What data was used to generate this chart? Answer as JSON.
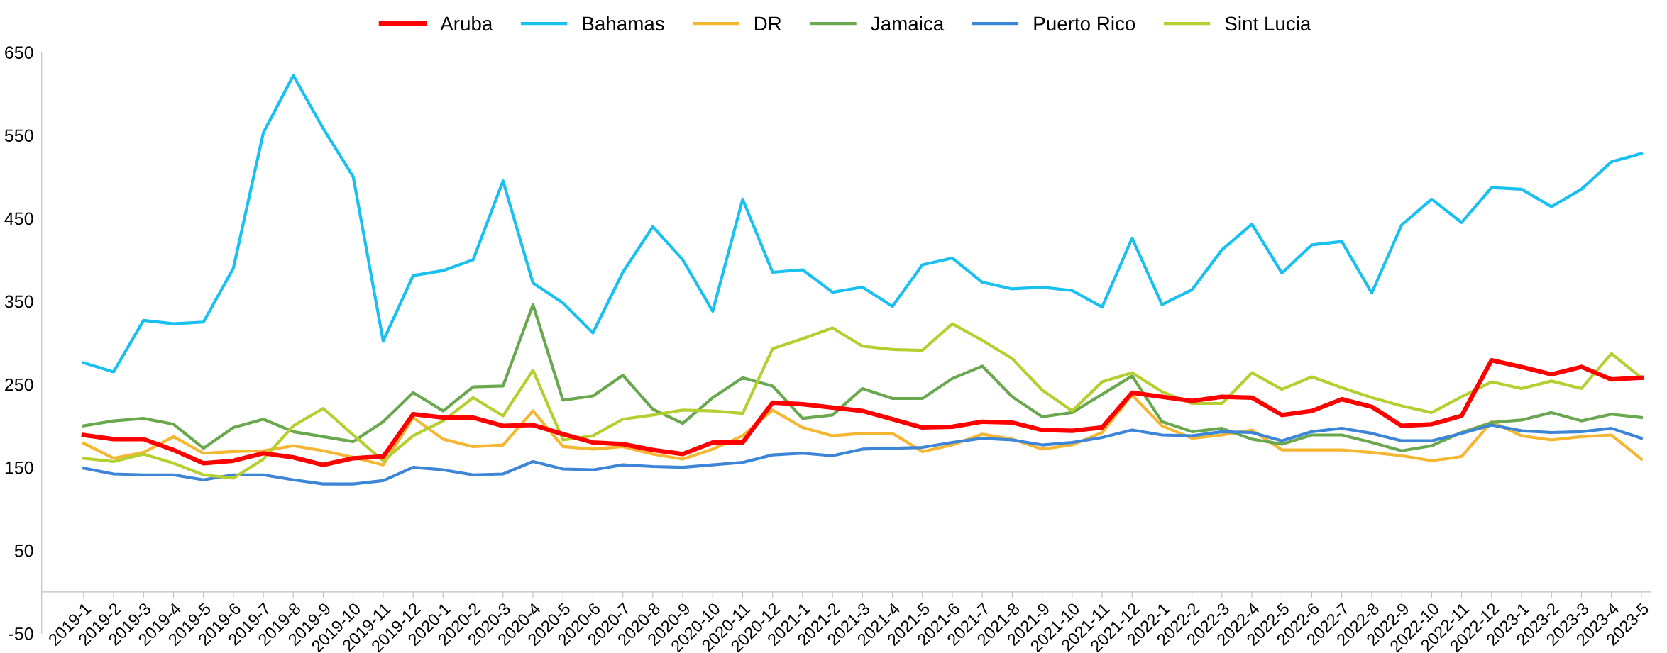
{
  "chart_data": {
    "type": "line",
    "categories": [
      "2019-1",
      "2019-2",
      "2019-3",
      "2019-4",
      "2019-5",
      "2019-6",
      "2019-7",
      "2019-8",
      "2019-9",
      "2019-10",
      "2019-11",
      "2019-12",
      "2020-1",
      "2020-2",
      "2020-3",
      "2020-4",
      "2020-5",
      "2020-6",
      "2020-7",
      "2020-8",
      "2020-9",
      "2020-10",
      "2020-11",
      "2020-12",
      "2021-1",
      "2021-2",
      "2021-3",
      "2021-4",
      "2021-5",
      "2021-6",
      "2021-7",
      "2021-8",
      "2021-9",
      "2021-10",
      "2021-11",
      "2021-12",
      "2022-1",
      "2022-2",
      "2022-3",
      "2022-4",
      "2022-5",
      "2022-6",
      "2022-7",
      "2022-8",
      "2022-9",
      "2022-10",
      "2022-11",
      "2022-12",
      "2023-1",
      "2023-2",
      "2023-3",
      "2023-4",
      "2023-5"
    ],
    "series": [
      {
        "name": "Aruba",
        "color": "#ff0000",
        "values": [
          189,
          184,
          184,
          171,
          155,
          158,
          167,
          162,
          153,
          161,
          163,
          214,
          210,
          210,
          200,
          201,
          190,
          180,
          178,
          171,
          166,
          180,
          180,
          228,
          226,
          222,
          218,
          208,
          198,
          199,
          205,
          204,
          195,
          194,
          198,
          240,
          235,
          230,
          235,
          234,
          213,
          218,
          232,
          223,
          200,
          202,
          212,
          279,
          271,
          262,
          271,
          256,
          258
        ]
      },
      {
        "name": "Bahamas",
        "color": "#19c0f0",
        "values": [
          276,
          265,
          327,
          323,
          325,
          390,
          553,
          622,
          558,
          500,
          302,
          381,
          387,
          400,
          495,
          372,
          348,
          312,
          385,
          440,
          400,
          338,
          473,
          385,
          388,
          361,
          367,
          344,
          394,
          402,
          373,
          365,
          367,
          363,
          343,
          426,
          346,
          364,
          412,
          443,
          384,
          418,
          422,
          360,
          442,
          473,
          445,
          487,
          485,
          464,
          485,
          518,
          528
        ]
      },
      {
        "name": "DR",
        "color": "#f5b731",
        "values": [
          179,
          161,
          168,
          187,
          167,
          169,
          170,
          176,
          170,
          162,
          153,
          210,
          184,
          175,
          177,
          218,
          175,
          172,
          175,
          166,
          160,
          172,
          188,
          219,
          198,
          188,
          191,
          191,
          169,
          177,
          190,
          184,
          172,
          177,
          192,
          237,
          200,
          185,
          189,
          195,
          171,
          171,
          171,
          168,
          164,
          158,
          163,
          205,
          188,
          183,
          187,
          189,
          160
        ]
      },
      {
        "name": "Jamaica",
        "color": "#6aa84f",
        "values": [
          200,
          206,
          209,
          202,
          173,
          198,
          208,
          193,
          187,
          181,
          205,
          240,
          218,
          247,
          248,
          346,
          231,
          236,
          261,
          220,
          203,
          234,
          258,
          248,
          209,
          213,
          245,
          233,
          233,
          257,
          272,
          235,
          211,
          216,
          238,
          260,
          205,
          193,
          197,
          184,
          178,
          189,
          189,
          180,
          170,
          176,
          192,
          204,
          207,
          216,
          206,
          214,
          210
        ]
      },
      {
        "name": "Puerto Rico",
        "color": "#3d85d6",
        "values": [
          149,
          142,
          141,
          141,
          135,
          141,
          141,
          135,
          130,
          130,
          134,
          150,
          147,
          141,
          142,
          157,
          148,
          147,
          153,
          151,
          150,
          153,
          156,
          165,
          167,
          164,
          172,
          173,
          174,
          180,
          185,
          183,
          177,
          180,
          186,
          195,
          189,
          188,
          193,
          192,
          182,
          193,
          197,
          191,
          182,
          182,
          191,
          201,
          194,
          192,
          193,
          197,
          185
        ]
      },
      {
        "name": "Sint Lucia",
        "color": "#b5cf31",
        "values": [
          161,
          157,
          166,
          155,
          141,
          137,
          160,
          200,
          221,
          189,
          158,
          188,
          206,
          234,
          212,
          267,
          183,
          188,
          208,
          213,
          219,
          218,
          215,
          293,
          305,
          318,
          296,
          292,
          291,
          323,
          303,
          281,
          243,
          218,
          253,
          264,
          241,
          227,
          227,
          264,
          244,
          259,
          246,
          234,
          224,
          216,
          235,
          253,
          245,
          254,
          245,
          287,
          258
        ]
      }
    ],
    "ylim": [
      -50,
      650
    ],
    "yticks": [
      -50,
      50,
      150,
      250,
      350,
      450,
      550,
      650
    ],
    "grid": false,
    "legend": "top",
    "marker": "none",
    "line_style": "solid"
  }
}
